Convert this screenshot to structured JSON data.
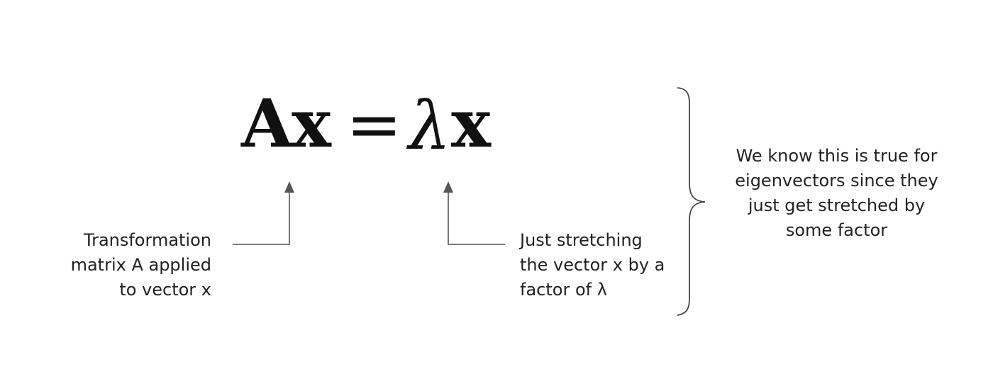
{
  "equation": {
    "lhs": "Ax",
    "equals": "=",
    "lambda": "λ",
    "rhs_vector": "x"
  },
  "annotations": {
    "left": {
      "lines": [
        "Transformation",
        "matrix A applied",
        "to vector x"
      ]
    },
    "middle": {
      "lines": [
        "Just stretching",
        "the vector x by a",
        "factor of λ"
      ]
    },
    "right": {
      "lines": [
        "We know this is true for",
        "eigenvectors since they",
        "just get stretched by",
        "some factor"
      ]
    }
  },
  "colors": {
    "text": "#222222",
    "equation": "#111111",
    "arrow": "#555555",
    "brace": "#444444"
  }
}
